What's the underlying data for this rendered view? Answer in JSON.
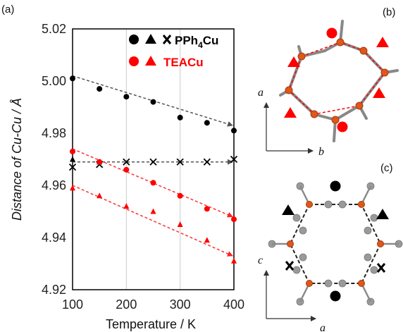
{
  "panel_labels": {
    "a": "(a)",
    "b": "(b)",
    "c": "(c)"
  },
  "legend": {
    "pph4_name": "PPh",
    "pph4_sub": "4",
    "pph4_suffix": "Cu",
    "tea_name": "TEACu"
  },
  "diagram_axes": {
    "b_vertical": "a",
    "b_horizontal": "b",
    "c_vertical": "c",
    "c_horizontal": "a"
  },
  "colors": {
    "black": "#000000",
    "red": "#ff0000",
    "grid": "#cccccc",
    "copper": "#e0571a",
    "carbon": "#8a8a8a",
    "nitrogen": "#6b7fd0",
    "hydrogen": "#bdbdbd"
  },
  "chart_data": {
    "type": "scatter",
    "xlabel": "Temperature / K",
    "ylabel": "Distance of Cu-Cu / Å",
    "xlim": [
      100,
      400
    ],
    "ylim": [
      4.92,
      5.02
    ],
    "xticks": [
      100,
      200,
      300,
      400
    ],
    "yticks": [
      4.92,
      4.94,
      4.96,
      4.98,
      5.0,
      5.02
    ],
    "xtick_labels": [
      "100",
      "200",
      "300",
      "400"
    ],
    "ytick_labels": [
      "4.92",
      "4.94",
      "4.96",
      "4.98",
      "5.00",
      "5.02"
    ],
    "grid": "vertical",
    "legend_position": "top-right",
    "series": [
      {
        "marker": "circle",
        "color": "black",
        "x": [
          100,
          150,
          200,
          250,
          300,
          350,
          400
        ],
        "y": [
          5.001,
          4.997,
          4.994,
          4.992,
          4.986,
          4.984,
          4.981
        ]
      },
      {
        "marker": "triangle",
        "color": "black",
        "x": [
          100,
          150
        ],
        "y": [
          4.97,
          4.969
        ]
      },
      {
        "marker": "cross",
        "color": "black",
        "x": [
          100,
          150,
          200,
          250,
          300,
          350,
          400
        ],
        "y": [
          4.967,
          4.968,
          4.969,
          4.969,
          4.969,
          4.969,
          4.97
        ]
      },
      {
        "marker": "circle",
        "color": "red",
        "x": [
          100,
          150,
          200,
          250,
          300,
          350,
          400
        ],
        "y": [
          4.973,
          4.969,
          4.966,
          4.961,
          4.956,
          4.951,
          4.947
        ]
      },
      {
        "marker": "triangle",
        "color": "red",
        "x": [
          100,
          150,
          200,
          250,
          300,
          350,
          400
        ],
        "y": [
          4.959,
          4.956,
          4.952,
          4.95,
          4.945,
          4.939,
          4.931
        ]
      }
    ],
    "trend_arrows": [
      {
        "color": "black",
        "from": [
          100,
          5.002
        ],
        "to": [
          400,
          4.983
        ]
      },
      {
        "color": "black",
        "from": [
          100,
          4.969
        ],
        "to": [
          400,
          4.969
        ]
      },
      {
        "color": "red",
        "from": [
          100,
          4.974
        ],
        "to": [
          400,
          4.948
        ]
      },
      {
        "color": "red",
        "from": [
          100,
          4.96
        ],
        "to": [
          400,
          4.933
        ]
      }
    ]
  }
}
